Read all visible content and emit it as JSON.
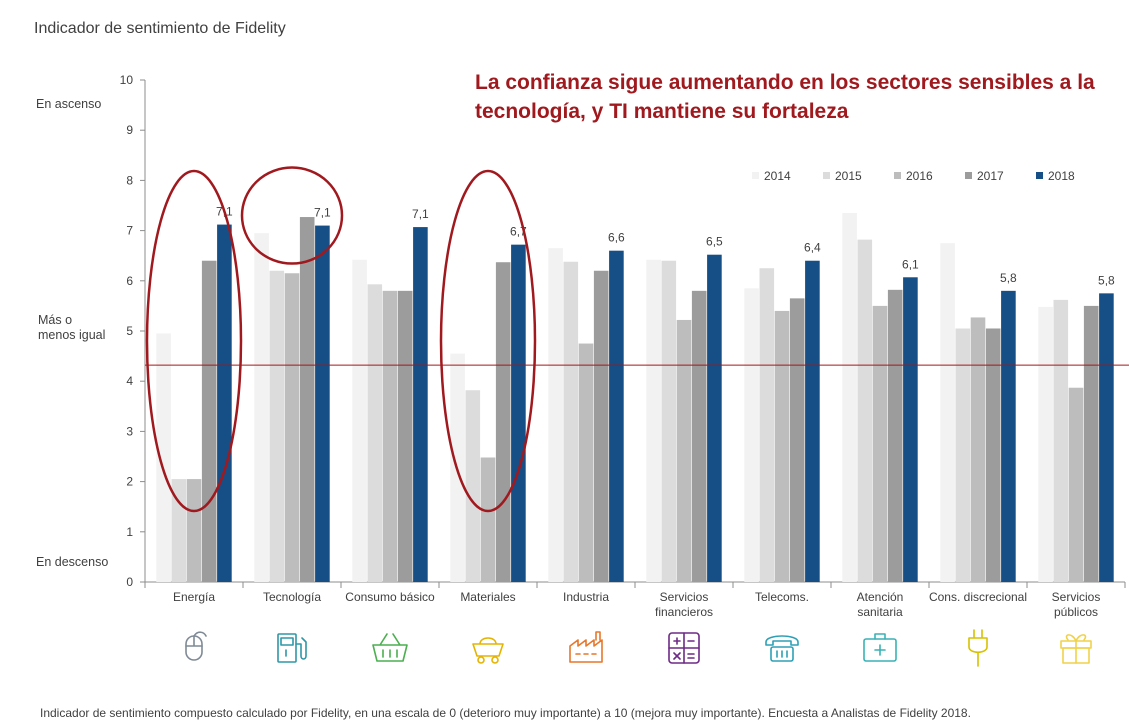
{
  "chart_data": {
    "type": "bar",
    "title": "Indicador de sentimiento de Fidelity",
    "headline": "La confianza sigue aumentando en los sectores sensibles a la tecnología, y  TI mantiene su fortaleza",
    "ylim": [
      0,
      10
    ],
    "yticks": [
      "0",
      "1",
      "2",
      "3",
      "4",
      "5",
      "6",
      "7",
      "8",
      "9",
      "10"
    ],
    "band_labels": {
      "up": "En ascenso",
      "mid_line1": "Más o",
      "mid_line2": "menos igual",
      "down": "En descenso"
    },
    "reference_line": 4.32,
    "categories": [
      [
        "Energía"
      ],
      [
        "Tecnología"
      ],
      [
        "Consumo  básico"
      ],
      [
        "Materiales"
      ],
      [
        "Industria"
      ],
      [
        "Servicios",
        "financieros"
      ],
      [
        "Telecoms."
      ],
      [
        "Atención",
        "sanitaria"
      ],
      [
        "Cons.  discrecional"
      ],
      [
        "Servicios",
        "públicos"
      ]
    ],
    "icons": [
      "mouse-icon",
      "fuel-pump-icon",
      "basket-icon",
      "mine-cart-icon",
      "factory-icon",
      "calculator-icon",
      "telephone-icon",
      "medical-kit-icon",
      "plug-icon",
      "gift-icon"
    ],
    "series": [
      {
        "name": "2014",
        "color": "#f2f2f2",
        "values": [
          4.95,
          6.95,
          6.42,
          4.55,
          6.65,
          6.42,
          5.85,
          7.35,
          6.75,
          5.48
        ]
      },
      {
        "name": "2015",
        "color": "#dcdcdc",
        "values": [
          2.05,
          6.2,
          5.93,
          3.82,
          6.38,
          6.4,
          6.25,
          6.82,
          5.05,
          5.62
        ]
      },
      {
        "name": "2016",
        "color": "#bdbdbd",
        "values": [
          2.05,
          6.15,
          5.8,
          2.48,
          4.75,
          5.22,
          5.4,
          5.5,
          5.27,
          3.87
        ]
      },
      {
        "name": "2017",
        "color": "#9c9c9c",
        "values": [
          6.4,
          7.27,
          5.8,
          6.37,
          6.2,
          5.8,
          5.65,
          5.82,
          5.05,
          5.5
        ]
      },
      {
        "name": "2018",
        "color": "#164f85",
        "values": [
          7.12,
          7.1,
          7.07,
          6.72,
          6.6,
          6.52,
          6.4,
          6.07,
          5.8,
          5.75
        ]
      }
    ],
    "data_labels_2018": [
      "7,1",
      "7,1",
      "7,1",
      "6,7",
      "6,6",
      "6,5",
      "6,4",
      "6,1",
      "5,8",
      "5,8"
    ],
    "highlighted_categories": [
      "Energía",
      "Tecnología",
      "Materiales"
    ],
    "highlight_color": "#a0191e",
    "legend_position": "top-right"
  },
  "footnote": "Indicador de sentimiento compuesto calculado por Fidelity, en una escala de 0 (deterioro  muy importante)  a 10 (mejora  muy importante).  Encuesta a Analistas de Fidelity 2018."
}
